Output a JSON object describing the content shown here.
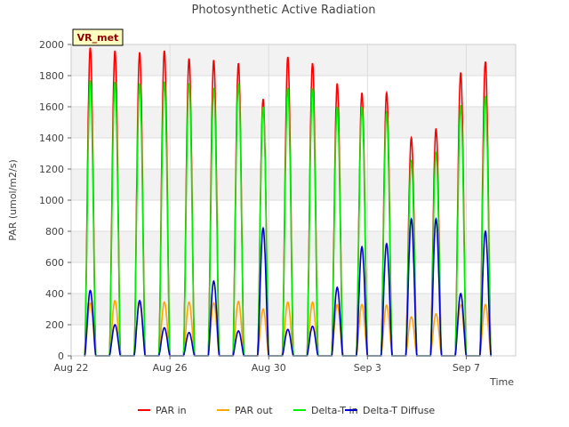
{
  "chart_data": {
    "type": "line",
    "title": "Photosynthetic Active Radiation",
    "xlabel": "Time",
    "ylabel": "PAR (umol/m2/s)",
    "site_label": "VR_met",
    "x_ticks": [
      "Aug 22",
      "Aug 26",
      "Aug 30",
      "Sep 3",
      "Sep 7"
    ],
    "x_tick_days": [
      0,
      4,
      8,
      12,
      16
    ],
    "xlim_days": [
      0,
      18
    ],
    "y_ticks": [
      0,
      200,
      400,
      600,
      800,
      1000,
      1200,
      1400,
      1600,
      1800,
      2000
    ],
    "ylim": [
      0,
      2000
    ],
    "legend_position": "bottom",
    "grid": true,
    "series": [
      {
        "name": "PAR in",
        "color": "#ff0000",
        "daily_peaks": [
          1980,
          1960,
          1950,
          1960,
          1910,
          1900,
          1880,
          1650,
          1920,
          1880,
          1750,
          1690,
          1690,
          1400,
          1460,
          1820,
          1890
        ]
      },
      {
        "name": "PAR out",
        "color": "#ffa500",
        "daily_peaks": [
          340,
          355,
          340,
          345,
          345,
          340,
          350,
          300,
          345,
          345,
          330,
          330,
          325,
          250,
          270,
          330,
          330
        ]
      },
      {
        "name": "Delta-T in",
        "color": "#00ee00",
        "daily_peaks": [
          1770,
          1760,
          1750,
          1760,
          1750,
          1720,
          1750,
          1600,
          1720,
          1720,
          1600,
          1600,
          1560,
          1250,
          1300,
          1610,
          1670
        ]
      },
      {
        "name": "Delta-T Diffuse",
        "color": "#0000cc",
        "daily_peaks": [
          420,
          200,
          355,
          180,
          150,
          480,
          160,
          820,
          170,
          190,
          440,
          700,
          720,
          880,
          880,
          400,
          800
        ]
      }
    ]
  }
}
